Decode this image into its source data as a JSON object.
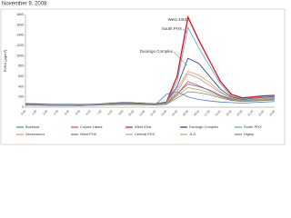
{
  "chart_data": {
    "type": "line",
    "title": "November 9, 2008",
    "y_label": "PM10 (µg/m³)",
    "categories": [
      "0:00",
      "1:00",
      "2:00",
      "3:00",
      "4:00",
      "5:00",
      "6:00",
      "7:00",
      "8:00",
      "9:00",
      "10:00",
      "11:00",
      "12:00",
      "13:00",
      "14:00",
      "15:00",
      "16:00",
      "17:00",
      "18:00",
      "19:00",
      "20:00",
      "21:00",
      "22:00",
      "23:00"
    ],
    "ylim": [
      0,
      1800
    ],
    "yticks": [
      0,
      200,
      400,
      600,
      800,
      1000,
      1200,
      1400,
      1600,
      1800
    ],
    "grid": false,
    "annotations": [
      {
        "text": "West 43rd",
        "series": 2
      },
      {
        "text": "South PHX",
        "series": 4
      },
      {
        "text": "Durango Complex",
        "series": 3
      }
    ],
    "series": [
      {
        "name": "Buckeye",
        "color": "#4f81bd",
        "values": [
          40,
          40,
          35,
          35,
          35,
          30,
          35,
          45,
          55,
          60,
          60,
          55,
          50,
          250,
          300,
          200,
          150,
          120,
          100,
          90,
          80,
          90,
          100,
          110
        ]
      },
      {
        "name": "Coyote Lakes",
        "color": "#c0504d",
        "values": [
          45,
          40,
          40,
          40,
          35,
          35,
          40,
          50,
          60,
          65,
          60,
          55,
          50,
          70,
          250,
          500,
          420,
          320,
          220,
          150,
          120,
          140,
          160,
          170
        ]
      },
      {
        "name": "West 43rd",
        "color": "#e0101a",
        "values": [
          60,
          55,
          50,
          50,
          45,
          45,
          50,
          60,
          70,
          80,
          80,
          70,
          60,
          90,
          600,
          1750,
          1300,
          900,
          500,
          250,
          180,
          200,
          220,
          230
        ]
      },
      {
        "name": "Durango Complex",
        "color": "#1f3a8a",
        "values": [
          70,
          65,
          60,
          55,
          55,
          50,
          55,
          65,
          80,
          90,
          85,
          75,
          65,
          100,
          400,
          950,
          850,
          600,
          350,
          200,
          150,
          170,
          190,
          200
        ]
      },
      {
        "name": "South PHX",
        "color": "#4bacc6",
        "values": [
          50,
          50,
          45,
          45,
          40,
          40,
          45,
          55,
          65,
          75,
          70,
          60,
          55,
          80,
          500,
          1550,
          1150,
          800,
          450,
          220,
          160,
          180,
          200,
          210
        ]
      },
      {
        "name": "Greenwood",
        "color": "#f79646",
        "values": [
          55,
          50,
          50,
          45,
          45,
          40,
          45,
          55,
          65,
          70,
          65,
          60,
          55,
          80,
          350,
          700,
          620,
          480,
          300,
          180,
          140,
          150,
          170,
          180
        ]
      },
      {
        "name": "West PHX",
        "color": "#8064a2",
        "values": [
          45,
          45,
          40,
          40,
          40,
          35,
          40,
          50,
          60,
          65,
          60,
          55,
          50,
          70,
          260,
          450,
          400,
          330,
          230,
          160,
          130,
          140,
          150,
          160
        ]
      },
      {
        "name": "Central PHX",
        "color": "#a5a5a5",
        "values": [
          50,
          45,
          45,
          40,
          40,
          40,
          45,
          55,
          60,
          70,
          65,
          60,
          55,
          75,
          300,
          650,
          560,
          420,
          280,
          170,
          140,
          150,
          160,
          170
        ]
      },
      {
        "name": "JLG",
        "color": "#9bbb59",
        "values": [
          40,
          40,
          35,
          35,
          35,
          30,
          35,
          45,
          50,
          55,
          55,
          50,
          45,
          60,
          220,
          380,
          340,
          280,
          200,
          140,
          120,
          130,
          140,
          150
        ]
      },
      {
        "name": "Higley",
        "color": "#7f7f7f",
        "values": [
          35,
          35,
          30,
          30,
          30,
          30,
          35,
          40,
          45,
          50,
          50,
          45,
          40,
          55,
          180,
          300,
          280,
          240,
          180,
          130,
          110,
          120,
          130,
          140
        ]
      }
    ]
  }
}
